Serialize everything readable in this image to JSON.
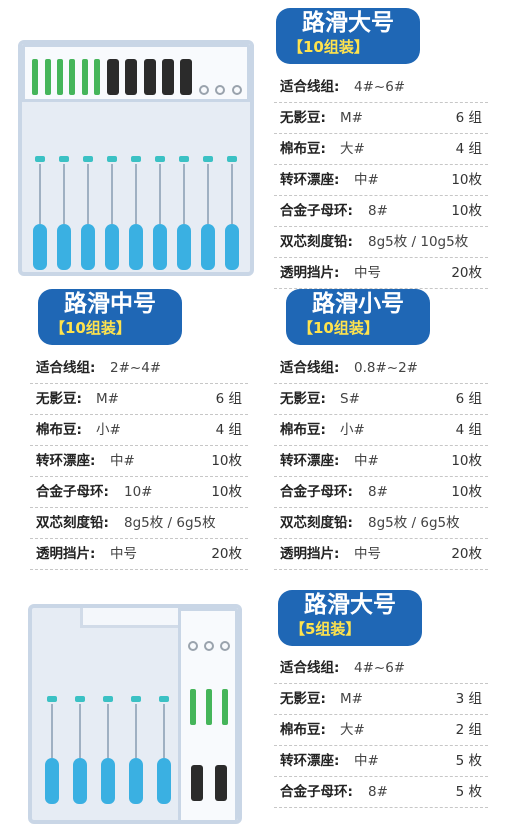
{
  "specs": [
    {
      "title": "路滑大号",
      "pack": "【10组装】",
      "rows": [
        {
          "label": "适合线组:",
          "value": "4#~6#",
          "qty": ""
        },
        {
          "label": "无影豆:",
          "value": "M#",
          "qty": "6 组"
        },
        {
          "label": "棉布豆:",
          "value": "大#",
          "qty": "4 组"
        },
        {
          "label": "转环漂座:",
          "value": "中#",
          "qty": "10枚"
        },
        {
          "label": "合金子母环:",
          "value": "8#",
          "qty": "10枚"
        },
        {
          "label": "双芯刻度铅:",
          "value": "8g5枚 / 10g5枚",
          "qty": ""
        },
        {
          "label": "透明挡片:",
          "value": "中号",
          "qty": "20枚"
        }
      ]
    },
    {
      "title": "路滑中号",
      "pack": "【10组装】",
      "rows": [
        {
          "label": "适合线组:",
          "value": "2#~4#",
          "qty": ""
        },
        {
          "label": "无影豆:",
          "value": "M#",
          "qty": "6 组"
        },
        {
          "label": "棉布豆:",
          "value": "小#",
          "qty": "4 组"
        },
        {
          "label": "转环漂座:",
          "value": "中#",
          "qty": "10枚"
        },
        {
          "label": "合金子母环:",
          "value": "10#",
          "qty": "10枚"
        },
        {
          "label": "双芯刻度铅:",
          "value": "8g5枚 / 6g5枚",
          "qty": ""
        },
        {
          "label": "透明挡片:",
          "value": "中号",
          "qty": "20枚"
        }
      ]
    },
    {
      "title": "路滑小号",
      "pack": "【10组装】",
      "rows": [
        {
          "label": "适合线组:",
          "value": "0.8#~2#",
          "qty": ""
        },
        {
          "label": "无影豆:",
          "value": "S#",
          "qty": "6 组"
        },
        {
          "label": "棉布豆:",
          "value": "小#",
          "qty": "4 组"
        },
        {
          "label": "转环漂座:",
          "value": "中#",
          "qty": "10枚"
        },
        {
          "label": "合金子母环:",
          "value": "8#",
          "qty": "10枚"
        },
        {
          "label": "双芯刻度铅:",
          "value": "8g5枚 / 6g5枚",
          "qty": ""
        },
        {
          "label": "透明挡片:",
          "value": "中号",
          "qty": "20枚"
        }
      ]
    },
    {
      "title": "路滑大号",
      "pack": "【5组装】",
      "rows": [
        {
          "label": "适合线组:",
          "value": "4#~6#",
          "qty": ""
        },
        {
          "label": "无影豆:",
          "value": "M#",
          "qty": "3 组"
        },
        {
          "label": "棉布豆:",
          "value": "大#",
          "qty": "2 组"
        },
        {
          "label": "转环漂座:",
          "value": "中#",
          "qty": "5 枚"
        },
        {
          "label": "合金子母环:",
          "value": "8#",
          "qty": "5 枚"
        }
      ]
    }
  ],
  "colors": {
    "title_bg": "#1f67b5",
    "pack_text": "#ffe34d",
    "float_tip": "#3ab0e2"
  }
}
